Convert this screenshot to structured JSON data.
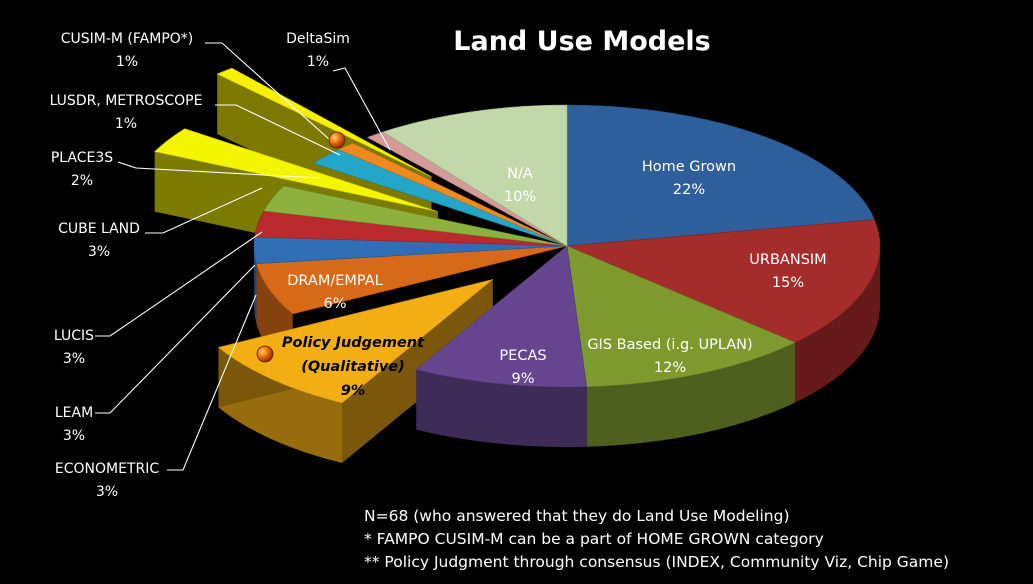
{
  "chart_data": {
    "type": "pie",
    "title": "Land Use Models",
    "slices": [
      {
        "label": "Home Grown",
        "value": 22,
        "pct": "22%",
        "color": "#2E5F9A"
      },
      {
        "label": "URBANSIM",
        "value": 15,
        "pct": "15%",
        "color": "#A42C2A"
      },
      {
        "label": "GIS Based (i.g. UPLAN)",
        "value": 12,
        "pct": "12%",
        "color": "#7E9A2F"
      },
      {
        "label": "PECAS",
        "value": 9,
        "pct": "9%",
        "color": "#65458E"
      },
      {
        "label": "Policy Judgement",
        "label2": "(Qualitative)",
        "value": 9,
        "pct": "9%",
        "color": "#F3AE13"
      },
      {
        "label": "DRAM/EMPAL",
        "value": 6,
        "pct": "6%",
        "color": "#D86A17"
      },
      {
        "label": "ECONOMETRIC",
        "value": 3,
        "pct": "3%",
        "color": "#2F6EB5"
      },
      {
        "label": "LEAM",
        "value": 3,
        "pct": "3%",
        "color": "#B82A2E"
      },
      {
        "label": "LUCIS",
        "value": 3,
        "pct": "3%",
        "color": "#8DB03E"
      },
      {
        "label": "CUBE LAND",
        "value": 3,
        "pct": "3%",
        "color": "#F5F500"
      },
      {
        "label": "PLACE3S",
        "value": 2,
        "pct": "2%",
        "color": "#23A6C8"
      },
      {
        "label": "LUSDR, METROSCOPE",
        "value": 1,
        "pct": "1%",
        "color": "#F08A1F"
      },
      {
        "label": "CUSIM-M (FAMPO*)",
        "value": 1,
        "pct": "1%",
        "color": "#F7F000"
      },
      {
        "label": "DeltaSim",
        "value": 1,
        "pct": "1%",
        "color": "#D79A9A"
      },
      {
        "label": "N/A",
        "value": 10,
        "pct": "10%",
        "color": "#C2D8A8"
      }
    ],
    "notes": [
      "N=68 (who answered that they do Land Use Modeling)",
      "* FAMPO CUSIM-M can be a part of HOME GROWN category",
      "** Policy Judgment through consensus (INDEX, Community Viz, Chip Game)"
    ]
  }
}
